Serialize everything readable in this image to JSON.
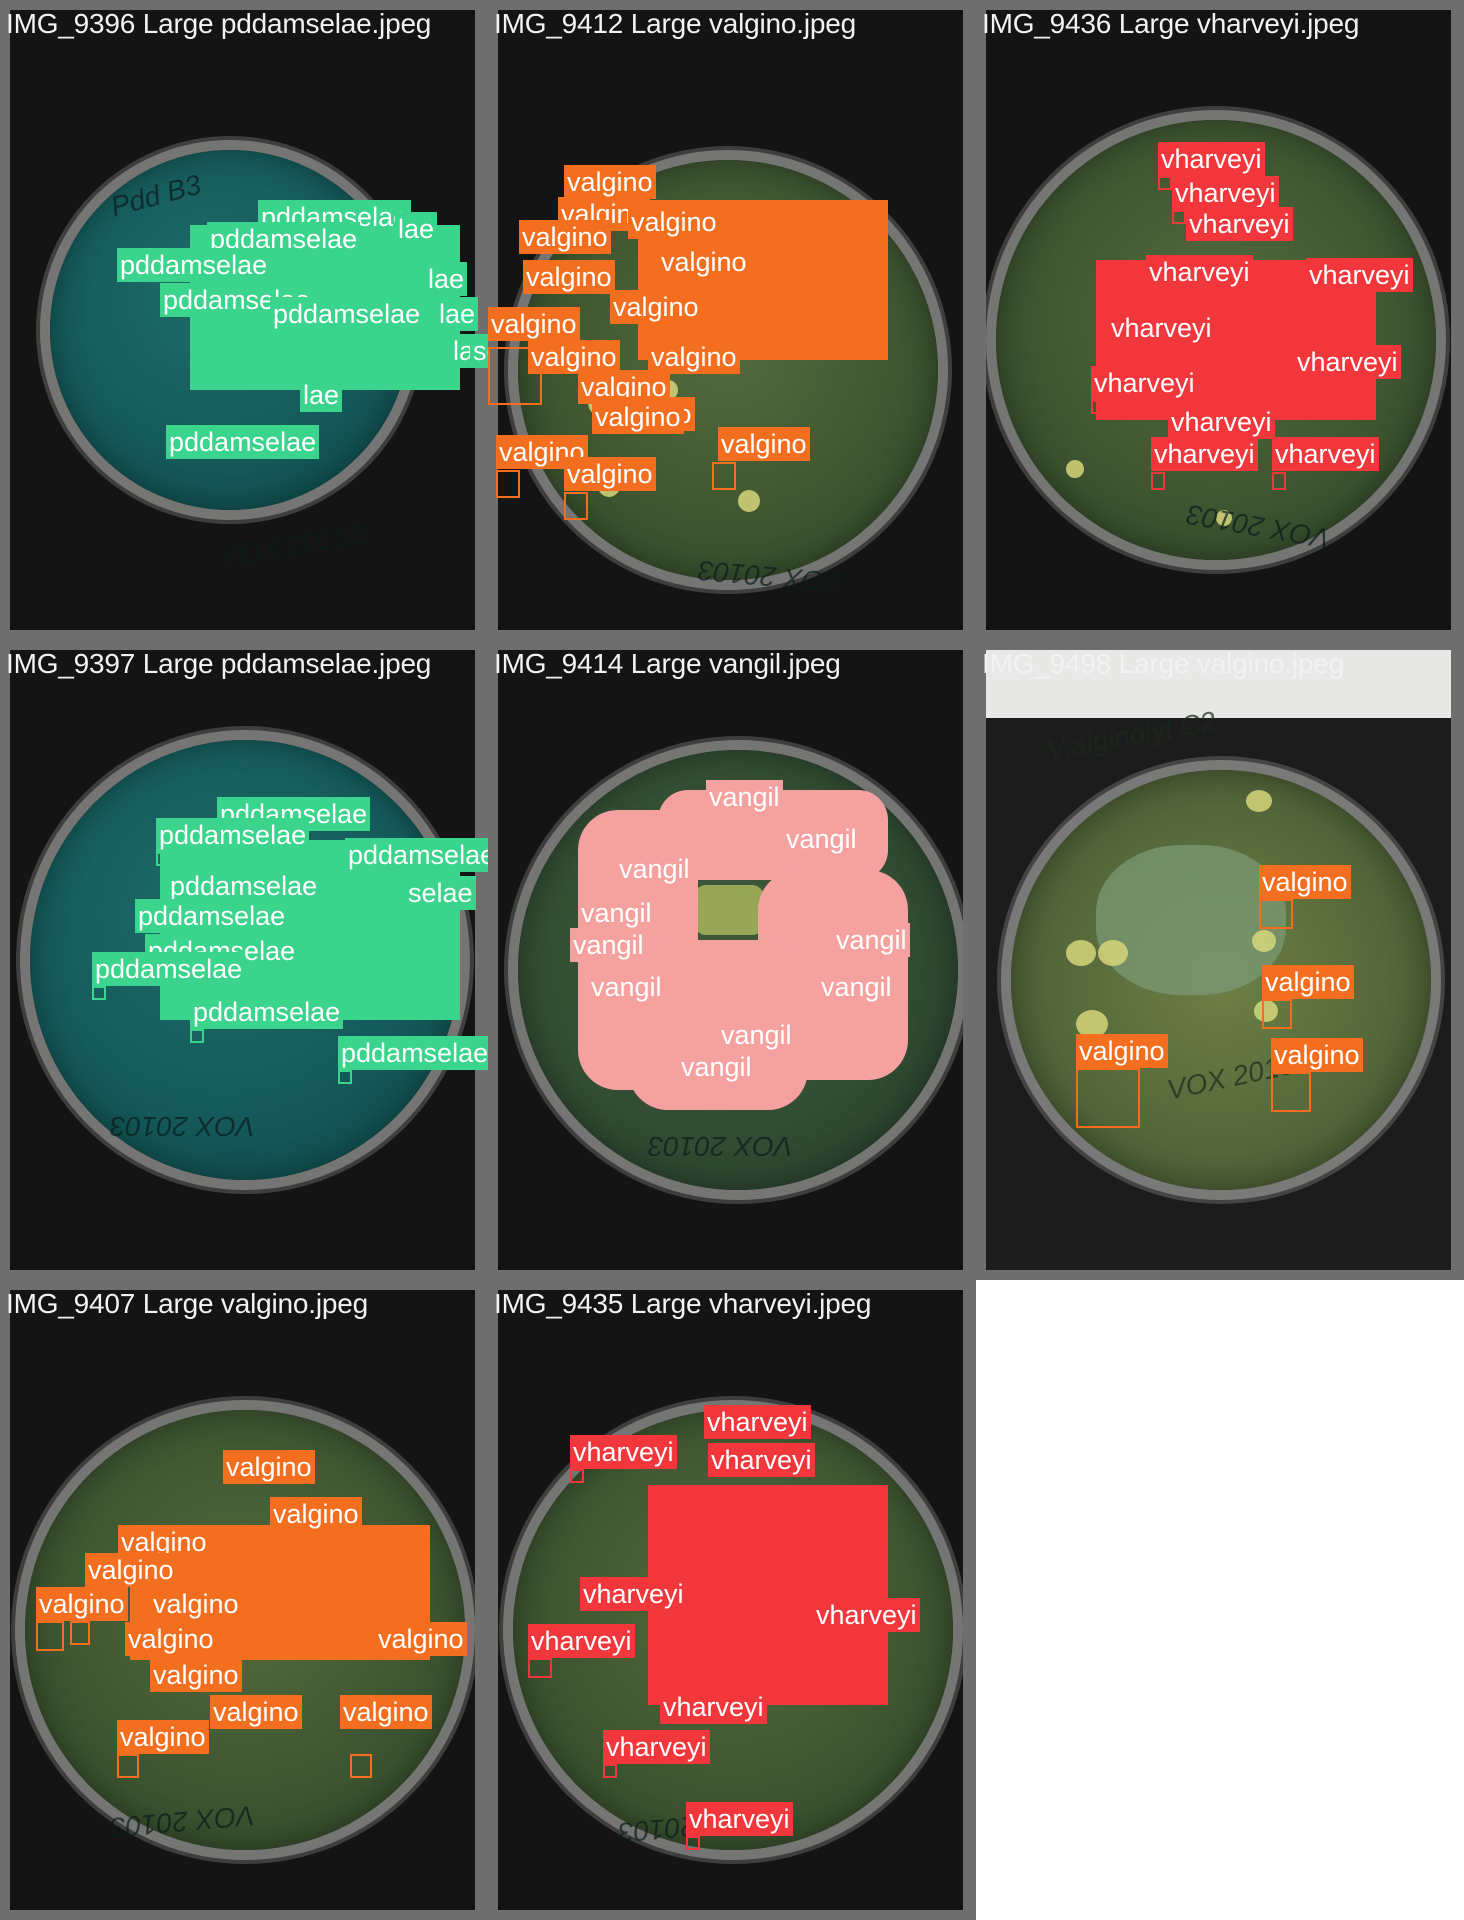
{
  "grid": {
    "cells": [
      {
        "id": "c1",
        "title": "IMG_9396 Large pddamselae.jpeg",
        "class": "pddamselae",
        "labels": [
          "pddamselae",
          "lae",
          "pddamselae",
          "lae",
          "pddamselae",
          "lae",
          "pddamselae",
          "lae",
          "pddamselae",
          "lae",
          "selae",
          "pddamselae"
        ]
      },
      {
        "id": "c2",
        "title": "IMG_9412 Large valgino.jpeg",
        "class": "valgino",
        "labels": [
          "valgino",
          "valgino",
          "valgino",
          "valgino",
          "valgino",
          "valgino",
          "valgino",
          "valgino",
          "valgino",
          "valgino",
          "valgino",
          "valgino",
          "valgino",
          "valgino",
          "valgino",
          "valgino"
        ]
      },
      {
        "id": "c3",
        "title": "IMG_9436 Large vharveyi.jpeg",
        "class": "vharveyi",
        "labels": [
          "vharveyi",
          "vharveyi",
          "vharveyi",
          "vharveyi",
          "vharveyi",
          "vharveyi",
          "vharveyi",
          "vharveyi",
          "vharveyi",
          "vharveyi",
          "vharveyi"
        ]
      },
      {
        "id": "c4",
        "title": "IMG_9397 Large pddamselae.jpeg",
        "class": "pddamselae",
        "labels": [
          "pddamselae",
          "pddamselae",
          "pddamselae",
          "selae",
          "pddamselae",
          "pddamselae",
          "pddamselae",
          "pddamselae",
          "pddamselae",
          "pddamselae"
        ]
      },
      {
        "id": "c5",
        "title": "IMG_9414 Large vangil.jpeg",
        "class": "vangil",
        "labels": [
          "vangil",
          "vangil",
          "vangil",
          "vangil",
          "vangil",
          "vangil",
          "vangil",
          "vangil",
          "vangil",
          "vangil"
        ]
      },
      {
        "id": "c6",
        "title": "IMG_9498 Large valgino.jpeg",
        "class": "valgino",
        "labels": [
          "valgino",
          "valgino",
          "valgino",
          "valgino"
        ]
      },
      {
        "id": "c7",
        "title": "IMG_9407 Large valgino.jpeg",
        "class": "valgino",
        "labels": [
          "valgino",
          "valgino",
          "valgino",
          "valgino",
          "valgino",
          "valgino",
          "valgino",
          "valgino",
          "valgino",
          "valgino",
          "valgino",
          "valgino"
        ]
      },
      {
        "id": "c8",
        "title": "IMG_9435 Large vharveyi.jpeg",
        "class": "vharveyi",
        "labels": [
          "vharveyi",
          "vharveyi",
          "vharveyi",
          "vharveyi",
          "vharveyi",
          "vharveyi",
          "vharveyi",
          "vharveyi",
          "vharveyi"
        ]
      }
    ]
  },
  "colors": {
    "pddamselae": "#3bd48c",
    "valgino": "#f36f1f",
    "vharveyi": "#f1373b",
    "vangil": "#f5a1a0"
  }
}
